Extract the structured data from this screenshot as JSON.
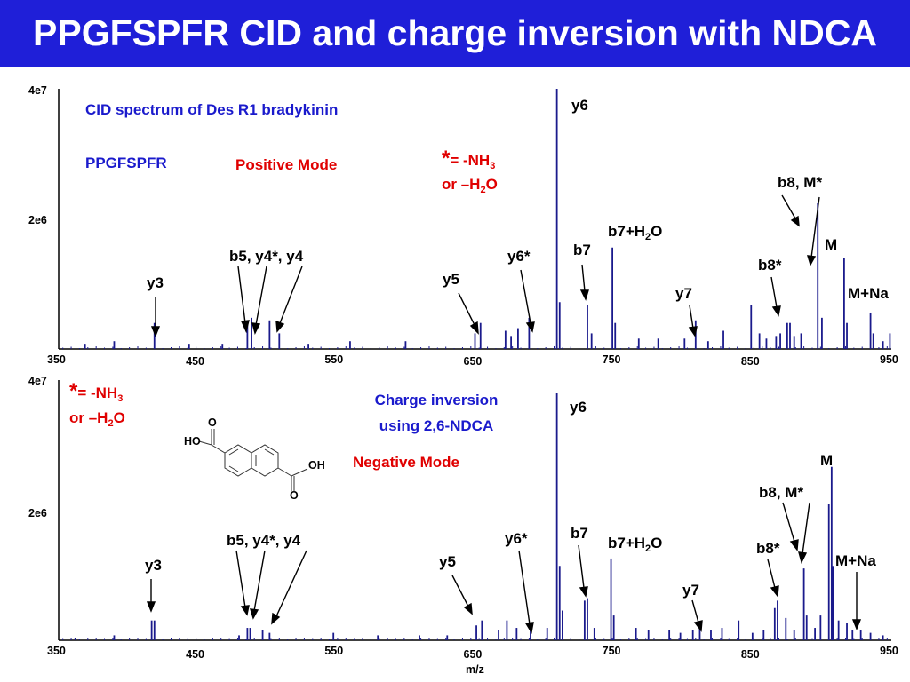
{
  "slide": {
    "title": "PPGFSPFR CID and charge inversion with NDCA",
    "title_bg": "#1f1fd8"
  },
  "colors": {
    "spectrum": "#1a1a8c",
    "blue_text": "#1a1acc",
    "red_text": "#e00000"
  },
  "chart_data": [
    {
      "type": "bar",
      "panel": "top",
      "x_ticks_low": [
        "350",
        "550",
        "750",
        "950"
      ],
      "x_ticks_high": [
        "450",
        "650",
        "850"
      ],
      "xlim": [
        350,
        950
      ],
      "y_ticks": [
        "4e7",
        "2e6"
      ],
      "annotations": {
        "heading": "CID spectrum of Des R1 bradykinin",
        "peptide": "PPGFSPFR",
        "mode": "Positive Mode",
        "note_line1_star": "*",
        "note_line1_text": "= -NH",
        "note_line1_sub": "3",
        "note_line2_text": "or –H",
        "note_line2_sub": "2",
        "note_line2_tail": "O"
      },
      "peak_labels": {
        "y3": "y3",
        "b5y4": "b5, y4*, y4",
        "y5": "y5",
        "y6star": "y6*",
        "y6": "y6",
        "b7": "b7",
        "b7h2o": "b7+H",
        "b7h2o_sub": "2",
        "b7h2o_tail": "O",
        "y7": "y7",
        "b8star": "b8*",
        "b8m": "b8, M*",
        "m": "M",
        "mna": "M+Na"
      },
      "peaks": [
        {
          "x": 369,
          "y": 0.02
        },
        {
          "x": 390,
          "y": 0.03
        },
        {
          "x": 419,
          "y": 0.1
        },
        {
          "x": 444,
          "y": 0.02
        },
        {
          "x": 468,
          "y": 0.02
        },
        {
          "x": 486,
          "y": 0.1
        },
        {
          "x": 489,
          "y": 0.12
        },
        {
          "x": 502,
          "y": 0.11
        },
        {
          "x": 509,
          "y": 0.06
        },
        {
          "x": 530,
          "y": 0.02
        },
        {
          "x": 560,
          "y": 0.03
        },
        {
          "x": 600,
          "y": 0.03
        },
        {
          "x": 650,
          "y": 0.06
        },
        {
          "x": 654,
          "y": 0.1
        },
        {
          "x": 672,
          "y": 0.07
        },
        {
          "x": 676,
          "y": 0.05
        },
        {
          "x": 681,
          "y": 0.08
        },
        {
          "x": 689,
          "y": 0.12
        },
        {
          "x": 709,
          "y": 1.0
        },
        {
          "x": 711,
          "y": 0.18
        },
        {
          "x": 731,
          "y": 0.17
        },
        {
          "x": 734,
          "y": 0.06
        },
        {
          "x": 749,
          "y": 0.39
        },
        {
          "x": 751,
          "y": 0.1
        },
        {
          "x": 768,
          "y": 0.04
        },
        {
          "x": 782,
          "y": 0.04
        },
        {
          "x": 801,
          "y": 0.04
        },
        {
          "x": 809,
          "y": 0.11
        },
        {
          "x": 818,
          "y": 0.03
        },
        {
          "x": 829,
          "y": 0.07
        },
        {
          "x": 849,
          "y": 0.17
        },
        {
          "x": 855,
          "y": 0.06
        },
        {
          "x": 860,
          "y": 0.04
        },
        {
          "x": 867,
          "y": 0.05
        },
        {
          "x": 870,
          "y": 0.06
        },
        {
          "x": 875,
          "y": 0.1
        },
        {
          "x": 877,
          "y": 0.1
        },
        {
          "x": 880,
          "y": 0.05
        },
        {
          "x": 885,
          "y": 0.06
        },
        {
          "x": 897,
          "y": 0.56
        },
        {
          "x": 900,
          "y": 0.12
        },
        {
          "x": 916,
          "y": 0.35
        },
        {
          "x": 918,
          "y": 0.1
        },
        {
          "x": 935,
          "y": 0.14
        },
        {
          "x": 937,
          "y": 0.06
        },
        {
          "x": 944,
          "y": 0.03
        },
        {
          "x": 949,
          "y": 0.06
        }
      ]
    },
    {
      "type": "bar",
      "panel": "bottom",
      "x_ticks_low": [
        "350",
        "550",
        "750",
        "950"
      ],
      "x_ticks_high": [
        "450",
        "650",
        "850"
      ],
      "xlim": [
        350,
        950
      ],
      "xlabel": "m/z",
      "y_ticks": [
        "4e7",
        "2e6"
      ],
      "annotations": {
        "method_line1": "Charge inversion",
        "method_line2": "using 2,6-NDCA",
        "mode": "Negative Mode",
        "note_line1_star": "*",
        "note_line1_text": "= -NH",
        "note_line1_sub": "3",
        "note_line2_text": "or –H",
        "note_line2_sub": "2",
        "note_line2_tail": "O",
        "struct_ho": "HO",
        "struct_oh": "OH",
        "struct_o": "O"
      },
      "peak_labels": {
        "y3": "y3",
        "b5y4": "b5, y4*, y4",
        "y5": "y5",
        "y6star": "y6*",
        "y6": "y6",
        "b7": "b7",
        "b7h2o": "b7+H",
        "b7h2o_sub": "2",
        "b7h2o_tail": "O",
        "y7": "y7",
        "b8star": "b8*",
        "b8m": "b8,  M*",
        "m": "M",
        "mna": "M+Na"
      },
      "peaks": [
        {
          "x": 362,
          "y": 0.01
        },
        {
          "x": 390,
          "y": 0.02
        },
        {
          "x": 417,
          "y": 0.08
        },
        {
          "x": 419,
          "y": 0.08
        },
        {
          "x": 480,
          "y": 0.02
        },
        {
          "x": 486,
          "y": 0.05
        },
        {
          "x": 488,
          "y": 0.05
        },
        {
          "x": 497,
          "y": 0.04
        },
        {
          "x": 502,
          "y": 0.03
        },
        {
          "x": 548,
          "y": 0.03
        },
        {
          "x": 580,
          "y": 0.02
        },
        {
          "x": 610,
          "y": 0.02
        },
        {
          "x": 630,
          "y": 0.02
        },
        {
          "x": 651,
          "y": 0.06
        },
        {
          "x": 655,
          "y": 0.08
        },
        {
          "x": 667,
          "y": 0.04
        },
        {
          "x": 673,
          "y": 0.08
        },
        {
          "x": 680,
          "y": 0.05
        },
        {
          "x": 690,
          "y": 0.04
        },
        {
          "x": 702,
          "y": 0.05
        },
        {
          "x": 709,
          "y": 1.0
        },
        {
          "x": 711,
          "y": 0.3
        },
        {
          "x": 713,
          "y": 0.12
        },
        {
          "x": 729,
          "y": 0.16
        },
        {
          "x": 731,
          "y": 0.17
        },
        {
          "x": 736,
          "y": 0.05
        },
        {
          "x": 748,
          "y": 0.33
        },
        {
          "x": 750,
          "y": 0.1
        },
        {
          "x": 766,
          "y": 0.05
        },
        {
          "x": 775,
          "y": 0.04
        },
        {
          "x": 790,
          "y": 0.04
        },
        {
          "x": 798,
          "y": 0.03
        },
        {
          "x": 807,
          "y": 0.04
        },
        {
          "x": 812,
          "y": 0.07
        },
        {
          "x": 820,
          "y": 0.04
        },
        {
          "x": 828,
          "y": 0.05
        },
        {
          "x": 840,
          "y": 0.08
        },
        {
          "x": 850,
          "y": 0.03
        },
        {
          "x": 858,
          "y": 0.04
        },
        {
          "x": 866,
          "y": 0.13
        },
        {
          "x": 868,
          "y": 0.16
        },
        {
          "x": 874,
          "y": 0.09
        },
        {
          "x": 880,
          "y": 0.04
        },
        {
          "x": 887,
          "y": 0.29
        },
        {
          "x": 889,
          "y": 0.1
        },
        {
          "x": 895,
          "y": 0.05
        },
        {
          "x": 899,
          "y": 0.1
        },
        {
          "x": 905,
          "y": 0.55
        },
        {
          "x": 907,
          "y": 0.7
        },
        {
          "x": 908,
          "y": 0.3
        },
        {
          "x": 912,
          "y": 0.08
        },
        {
          "x": 918,
          "y": 0.07
        },
        {
          "x": 922,
          "y": 0.04
        },
        {
          "x": 928,
          "y": 0.04
        },
        {
          "x": 935,
          "y": 0.03
        },
        {
          "x": 944,
          "y": 0.02
        }
      ]
    }
  ]
}
